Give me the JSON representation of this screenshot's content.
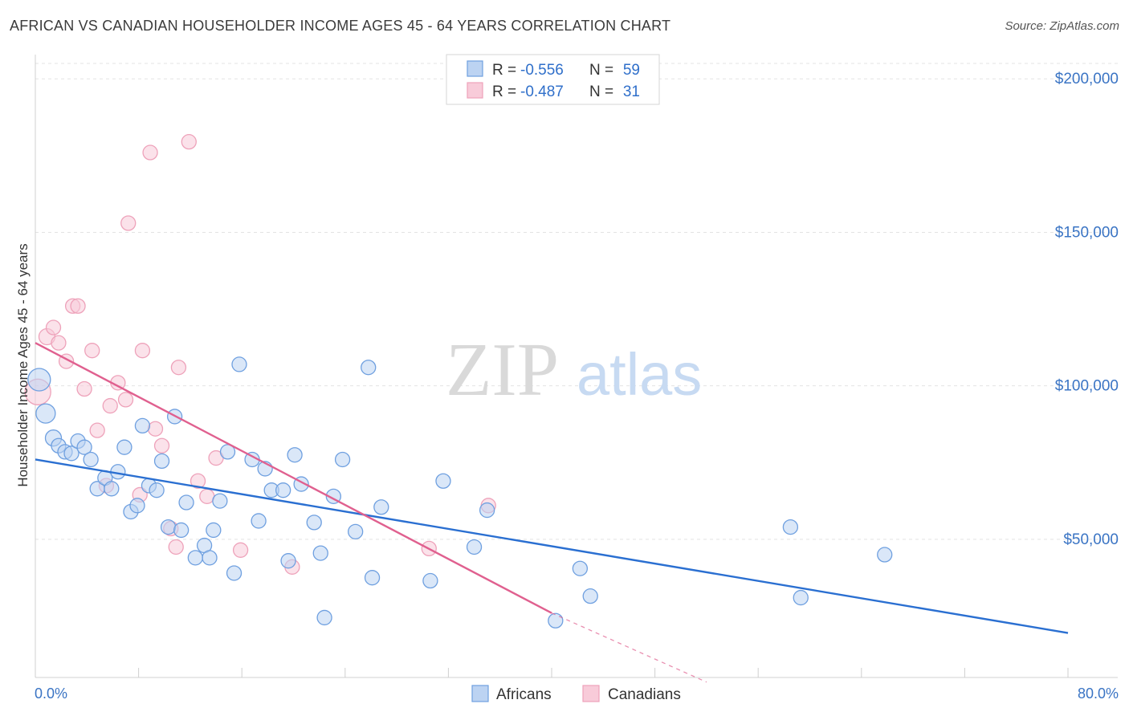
{
  "title": "AFRICAN VS CANADIAN HOUSEHOLDER INCOME AGES 45 - 64 YEARS CORRELATION CHART",
  "source": "Source: ZipAtlas.com",
  "watermark": {
    "zip": "ZIP",
    "atlas": "atlas"
  },
  "chart_data": {
    "type": "scatter",
    "xlabel": "",
    "ylabel": "Householder Income Ages 45 - 64 years",
    "xlim": [
      0,
      80
    ],
    "ylim": [
      5000,
      210000
    ],
    "x_tick_labels": [
      "0.0%",
      "80.0%"
    ],
    "y_ticks": [
      {
        "value": 50000,
        "label": "$50,000"
      },
      {
        "value": 100000,
        "label": "$100,000"
      },
      {
        "value": 150000,
        "label": "$150,000"
      },
      {
        "value": 200000,
        "label": "$200,000"
      }
    ],
    "grid": true,
    "legend_placement": "top-center",
    "series": [
      {
        "name": "Africans",
        "color": "#6fa0e0",
        "fill": "#bcd3f2",
        "line_color": "#2a6fd1",
        "R": "-0.556",
        "N": "59",
        "trend": {
          "x": [
            0,
            80
          ],
          "y": [
            76000,
            19500
          ]
        },
        "points": [
          [
            0.3,
            102000,
            14
          ],
          [
            0.8,
            91000,
            12
          ],
          [
            1.4,
            83000,
            10
          ],
          [
            1.8,
            80500,
            9
          ],
          [
            2.3,
            78500,
            9
          ],
          [
            2.8,
            78000,
            9
          ],
          [
            3.3,
            82000,
            9
          ],
          [
            3.8,
            80000,
            9
          ],
          [
            4.3,
            76000,
            9
          ],
          [
            4.8,
            66500,
            9
          ],
          [
            5.4,
            70000,
            9
          ],
          [
            5.9,
            66500,
            9
          ],
          [
            6.4,
            72000,
            9
          ],
          [
            6.9,
            80000,
            9
          ],
          [
            7.4,
            59000,
            9
          ],
          [
            7.9,
            61000,
            9
          ],
          [
            8.3,
            87000,
            9
          ],
          [
            8.8,
            67500,
            9
          ],
          [
            9.4,
            66000,
            9
          ],
          [
            9.8,
            75500,
            9
          ],
          [
            10.3,
            54000,
            9
          ],
          [
            10.8,
            90000,
            9
          ],
          [
            11.3,
            53000,
            9
          ],
          [
            11.7,
            62000,
            9
          ],
          [
            12.4,
            44000,
            9
          ],
          [
            13.1,
            48000,
            9
          ],
          [
            13.5,
            44000,
            9
          ],
          [
            13.8,
            53000,
            9
          ],
          [
            14.3,
            62500,
            9
          ],
          [
            14.9,
            78500,
            9
          ],
          [
            15.4,
            39000,
            9
          ],
          [
            15.8,
            107000,
            9
          ],
          [
            16.8,
            76000,
            9
          ],
          [
            17.3,
            56000,
            9
          ],
          [
            17.8,
            73000,
            9
          ],
          [
            18.3,
            66000,
            9
          ],
          [
            19.2,
            66000,
            9
          ],
          [
            19.6,
            43000,
            9
          ],
          [
            20.1,
            77500,
            9
          ],
          [
            20.6,
            68000,
            9
          ],
          [
            21.6,
            55500,
            9
          ],
          [
            22.1,
            45500,
            9
          ],
          [
            22.4,
            24500,
            9
          ],
          [
            23.1,
            64000,
            9
          ],
          [
            23.8,
            76000,
            9
          ],
          [
            24.8,
            52500,
            9
          ],
          [
            25.8,
            106000,
            9
          ],
          [
            26.1,
            37500,
            9
          ],
          [
            26.8,
            60500,
            9
          ],
          [
            30.6,
            36500,
            9
          ],
          [
            31.6,
            69000,
            9
          ],
          [
            34.0,
            47500,
            9
          ],
          [
            35.0,
            59500,
            9
          ],
          [
            40.3,
            23500,
            9
          ],
          [
            42.2,
            40500,
            9
          ],
          [
            43.0,
            31500,
            9
          ],
          [
            58.5,
            54000,
            9
          ],
          [
            59.3,
            31000,
            9
          ],
          [
            65.8,
            45000,
            9
          ]
        ]
      },
      {
        "name": "Canadians",
        "color": "#eea2ba",
        "fill": "#f8cbd9",
        "line_color": "#e0608f",
        "R": "-0.487",
        "N": "31",
        "trend": {
          "x": [
            0,
            40.0
          ],
          "y": [
            114000,
            26000
          ]
        },
        "trend_ext": {
          "x": [
            40.0,
            52.0
          ],
          "y": [
            26000,
            3500
          ]
        },
        "points": [
          [
            0.2,
            98000,
            16
          ],
          [
            0.9,
            116000,
            10
          ],
          [
            1.4,
            119000,
            9
          ],
          [
            1.8,
            114000,
            9
          ],
          [
            2.4,
            108000,
            9
          ],
          [
            2.9,
            126000,
            9
          ],
          [
            3.3,
            126000,
            9
          ],
          [
            3.8,
            99000,
            9
          ],
          [
            4.4,
            111500,
            9
          ],
          [
            4.8,
            85500,
            9
          ],
          [
            5.5,
            67500,
            9
          ],
          [
            5.8,
            93500,
            9
          ],
          [
            6.4,
            101000,
            9
          ],
          [
            7.0,
            95500,
            9
          ],
          [
            7.2,
            153000,
            9
          ],
          [
            8.1,
            64500,
            9
          ],
          [
            8.3,
            111500,
            9
          ],
          [
            8.9,
            176000,
            9
          ],
          [
            9.3,
            86000,
            9
          ],
          [
            9.8,
            80500,
            9
          ],
          [
            10.5,
            53500,
            9
          ],
          [
            10.9,
            47500,
            9
          ],
          [
            11.1,
            106000,
            9
          ],
          [
            11.9,
            179500,
            9
          ],
          [
            12.6,
            69000,
            9
          ],
          [
            13.3,
            64000,
            9
          ],
          [
            14.0,
            76500,
            9
          ],
          [
            15.9,
            46500,
            9
          ],
          [
            19.9,
            41000,
            9
          ],
          [
            30.5,
            47000,
            9
          ],
          [
            35.1,
            61000,
            9
          ]
        ]
      }
    ]
  }
}
